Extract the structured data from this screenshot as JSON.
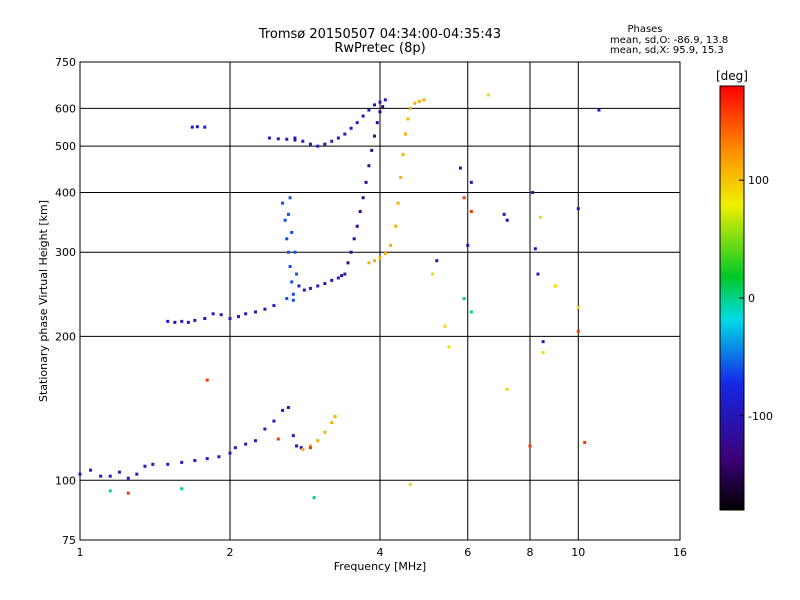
{
  "chart_data": {
    "type": "scatter",
    "title": "Tromsø 20150507 04:34:00-04:35:43",
    "subtitle": "RwPretec (8p)",
    "xlabel": "Frequency [MHz]",
    "ylabel": "Stationary phase Virtual Height [km]",
    "x_scale": "log",
    "y_scale": "log",
    "xlim": [
      1,
      16
    ],
    "ylim": [
      75,
      750
    ],
    "x_ticks": [
      1,
      2,
      4,
      6,
      8,
      10,
      16
    ],
    "x_tick_labels": [
      "1",
      "2",
      "4",
      "6",
      "8",
      "10",
      "16"
    ],
    "y_ticks": [
      75,
      100,
      200,
      300,
      400,
      500,
      600,
      750
    ],
    "y_tick_labels": [
      "75",
      "100",
      "200",
      "300",
      "400",
      "500",
      "600",
      "750"
    ],
    "grid": true,
    "stats": {
      "heading": "Phases",
      "o_line": "mean, sd,O: -86.9, 13.8",
      "x_line": "mean, sd,X:  95.9, 15.3"
    },
    "colorbar": {
      "label": "[deg]",
      "range": [
        -180,
        180
      ],
      "ticks": [
        100,
        0,
        -100
      ],
      "tick_labels": [
        "100",
        "0",
        "-100"
      ]
    },
    "series": [
      {
        "color_deg": -95,
        "points": [
          [
            1.0,
            103
          ],
          [
            1.05,
            105
          ],
          [
            1.1,
            102
          ],
          [
            1.15,
            102
          ],
          [
            1.2,
            104
          ],
          [
            1.25,
            101
          ],
          [
            1.3,
            103
          ],
          [
            1.35,
            107
          ],
          [
            1.4,
            108
          ],
          [
            1.5,
            108
          ],
          [
            1.6,
            109
          ],
          [
            1.7,
            110
          ],
          [
            1.8,
            111
          ],
          [
            1.9,
            112
          ],
          [
            2.0,
            114
          ],
          [
            2.05,
            117
          ],
          [
            2.15,
            119
          ],
          [
            2.25,
            121
          ],
          [
            2.35,
            128
          ],
          [
            2.45,
            133
          ],
          [
            2.55,
            140
          ],
          [
            2.62,
            142
          ],
          [
            2.68,
            124
          ],
          [
            2.72,
            118
          ],
          [
            2.78,
            117
          ],
          [
            1.5,
            215
          ],
          [
            1.55,
            214
          ],
          [
            1.6,
            215
          ],
          [
            1.65,
            214
          ],
          [
            1.7,
            216
          ],
          [
            1.78,
            218
          ],
          [
            1.85,
            223
          ],
          [
            1.92,
            222
          ],
          [
            2.0,
            218
          ],
          [
            2.08,
            220
          ],
          [
            2.15,
            223
          ],
          [
            2.25,
            225
          ],
          [
            2.35,
            228
          ],
          [
            2.45,
            232
          ],
          [
            1.68,
            548
          ],
          [
            1.72,
            549
          ],
          [
            1.78,
            548
          ],
          [
            2.75,
            255
          ],
          [
            2.82,
            250
          ],
          [
            2.9,
            252
          ],
          [
            3.0,
            255
          ],
          [
            3.1,
            258
          ],
          [
            3.2,
            262
          ],
          [
            3.3,
            265
          ],
          [
            3.4,
            270
          ],
          [
            2.7,
            520
          ],
          [
            2.8,
            512
          ],
          [
            2.9,
            505
          ],
          [
            3.0,
            500
          ],
          [
            3.1,
            505
          ],
          [
            3.2,
            512
          ],
          [
            3.3,
            520
          ],
          [
            3.4,
            530
          ],
          [
            3.5,
            545
          ],
          [
            3.6,
            560
          ],
          [
            3.7,
            578
          ],
          [
            3.8,
            595
          ],
          [
            3.9,
            610
          ],
          [
            4.0,
            618
          ],
          [
            4.1,
            625
          ],
          [
            2.4,
            520
          ],
          [
            2.5,
            518
          ],
          [
            2.6,
            517
          ],
          [
            2.7,
            515
          ]
        ]
      },
      {
        "color_deg": -125,
        "points": [
          [
            3.35,
            268
          ],
          [
            3.45,
            285
          ],
          [
            3.5,
            300
          ],
          [
            3.55,
            320
          ],
          [
            3.6,
            340
          ],
          [
            3.65,
            365
          ],
          [
            3.7,
            390
          ],
          [
            3.75,
            420
          ],
          [
            3.8,
            455
          ],
          [
            3.85,
            490
          ],
          [
            3.9,
            525
          ],
          [
            3.95,
            560
          ],
          [
            4.0,
            590
          ],
          [
            4.05,
            605
          ]
        ]
      },
      {
        "color_deg": -60,
        "points": [
          [
            2.55,
            380
          ],
          [
            2.58,
            350
          ],
          [
            2.6,
            320
          ],
          [
            2.62,
            300
          ],
          [
            2.64,
            280
          ],
          [
            2.66,
            260
          ],
          [
            2.68,
            245
          ],
          [
            2.62,
            360
          ],
          [
            2.66,
            330
          ],
          [
            2.7,
            300
          ],
          [
            2.72,
            270
          ],
          [
            2.6,
            240
          ],
          [
            2.68,
            238
          ],
          [
            2.64,
            390
          ]
        ]
      },
      {
        "color_deg": 108,
        "points": [
          [
            2.8,
            116
          ],
          [
            2.9,
            118
          ],
          [
            3.0,
            121
          ],
          [
            3.1,
            126
          ],
          [
            3.2,
            132
          ],
          [
            3.25,
            136
          ],
          [
            3.8,
            285
          ],
          [
            3.9,
            288
          ],
          [
            4.0,
            292
          ],
          [
            4.1,
            298
          ],
          [
            4.2,
            310
          ],
          [
            4.3,
            340
          ],
          [
            4.35,
            380
          ],
          [
            4.4,
            430
          ],
          [
            4.45,
            480
          ],
          [
            4.5,
            530
          ],
          [
            4.55,
            570
          ],
          [
            4.6,
            600
          ],
          [
            4.7,
            615
          ],
          [
            4.8,
            620
          ],
          [
            4.9,
            625
          ]
        ]
      },
      {
        "color_deg": 160,
        "points": [
          [
            1.25,
            94
          ],
          [
            1.8,
            162
          ],
          [
            2.5,
            122
          ],
          [
            2.9,
            117
          ],
          [
            5.9,
            390
          ],
          [
            6.1,
            365
          ],
          [
            8.0,
            118
          ],
          [
            10.0,
            205
          ],
          [
            10.3,
            120
          ]
        ]
      },
      {
        "color_deg": -100,
        "points": [
          [
            5.2,
            288
          ],
          [
            5.8,
            450
          ],
          [
            6.0,
            310
          ],
          [
            6.1,
            420
          ],
          [
            7.1,
            360
          ],
          [
            7.2,
            350
          ],
          [
            8.1,
            400
          ],
          [
            8.2,
            305
          ],
          [
            8.3,
            270
          ],
          [
            8.5,
            195
          ],
          [
            10.0,
            370
          ],
          [
            11.0,
            595
          ]
        ]
      },
      {
        "color_deg": 90,
        "points": [
          [
            4.6,
            98
          ],
          [
            5.1,
            270
          ],
          [
            5.4,
            210
          ],
          [
            5.5,
            190
          ],
          [
            6.6,
            640
          ],
          [
            7.2,
            155
          ],
          [
            8.4,
            355
          ],
          [
            8.5,
            185
          ],
          [
            9.0,
            255
          ],
          [
            10.0,
            230
          ]
        ]
      },
      {
        "color_deg": 0,
        "points": [
          [
            2.95,
            92
          ],
          [
            1.15,
            95
          ],
          [
            1.6,
            96
          ],
          [
            5.9,
            240
          ],
          [
            6.1,
            225
          ]
        ]
      }
    ]
  }
}
